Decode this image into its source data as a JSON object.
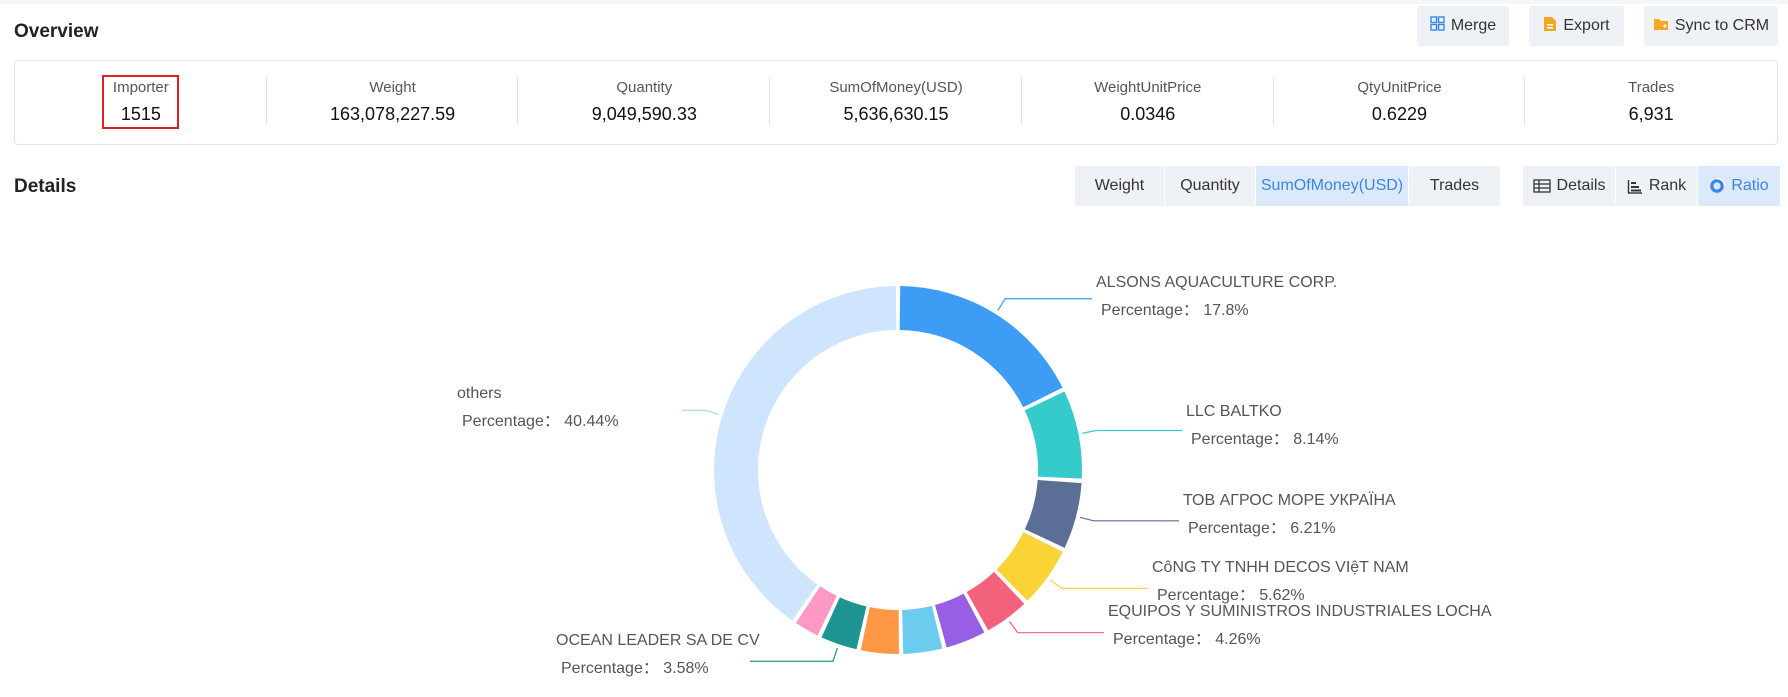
{
  "overview": {
    "title": "Overview",
    "buttons": {
      "merge": "Merge",
      "export": "Export",
      "sync": "Sync to CRM"
    },
    "stats": [
      {
        "label": "Importer",
        "value": "1515"
      },
      {
        "label": "Weight",
        "value": "163,078,227.59"
      },
      {
        "label": "Quantity",
        "value": "9,049,590.33"
      },
      {
        "label": "SumOfMoney(USD)",
        "value": "5,636,630.15"
      },
      {
        "label": "WeightUnitPrice",
        "value": "0.0346"
      },
      {
        "label": "QtyUnitPrice",
        "value": "0.6229"
      },
      {
        "label": "Trades",
        "value": "6,931"
      }
    ]
  },
  "details": {
    "title": "Details",
    "metric_tabs": [
      "Weight",
      "Quantity",
      "SumOfMoney(USD)",
      "Trades"
    ],
    "active_metric": "SumOfMoney(USD)",
    "view_tabs": [
      "Details",
      "Rank",
      "Ratio"
    ],
    "active_view": "Ratio"
  },
  "chart_data": {
    "type": "pie",
    "percentage_label": "Percentage：",
    "slices": [
      {
        "name": "ALSONS AQUACULTURE CORP.",
        "value": 17.8,
        "label": "17.8%",
        "color": "#3d9df5"
      },
      {
        "name": "LLC BALTKO",
        "value": 8.14,
        "label": "8.14%",
        "color": "#36cbcb"
      },
      {
        "name": "ТОВ АГРОС МОРЕ УКРАЇНА",
        "value": 6.21,
        "label": "6.21%",
        "color": "#5b6e96"
      },
      {
        "name": "CôNG TY TNHH DECOS VIệT NAM",
        "value": 5.62,
        "label": "5.62%",
        "color": "#fad337"
      },
      {
        "name": "EQUIPOS Y SUMINISTROS INDUSTRIALES LOCHA",
        "value": 4.26,
        "label": "4.26%",
        "color": "#f2637b"
      },
      {
        "name": "",
        "value": 3.9,
        "label": "",
        "color": "#975fe4"
      },
      {
        "name": "",
        "value": 3.8,
        "label": "",
        "color": "#6ccbef"
      },
      {
        "name": "",
        "value": 3.7,
        "label": "",
        "color": "#ff9845"
      },
      {
        "name": "OCEAN LEADER SA DE CV",
        "value": 3.58,
        "label": "3.58%",
        "color": "#1e9493"
      },
      {
        "name": "",
        "value": 2.55,
        "label": "",
        "color": "#ff99c3"
      },
      {
        "name": "others",
        "value": 40.44,
        "label": "40.44%",
        "color": "#cfe5fd"
      }
    ]
  }
}
